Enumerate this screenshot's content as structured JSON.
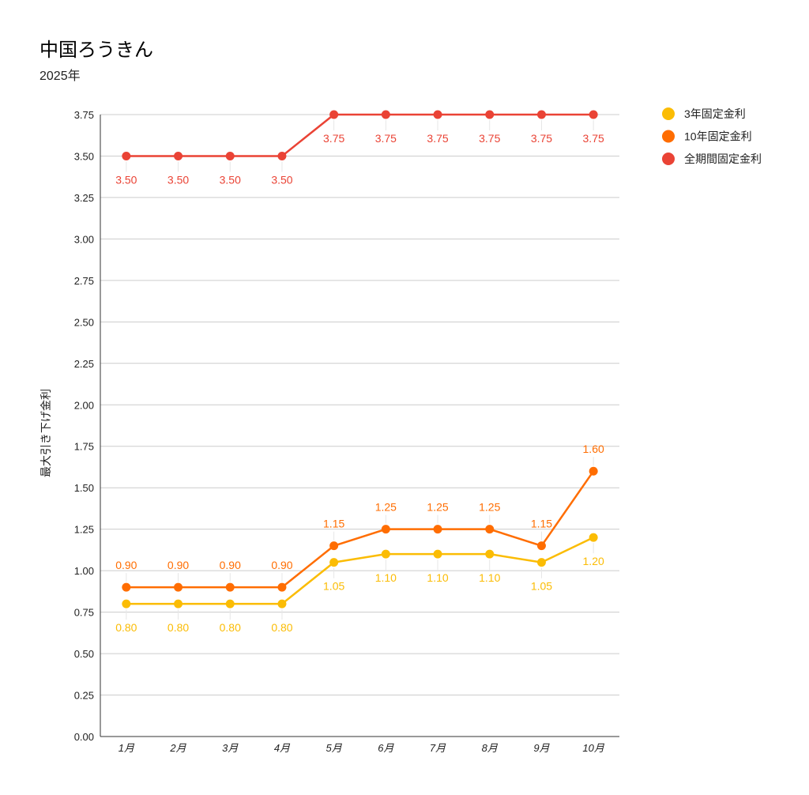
{
  "chart_data": {
    "type": "line",
    "title": "中国ろうきん",
    "subtitle": "2025年",
    "xlabel": "",
    "ylabel": "最大引き下げ金利",
    "categories": [
      "1月",
      "2月",
      "3月",
      "4月",
      "5月",
      "6月",
      "7月",
      "8月",
      "9月",
      "10月"
    ],
    "ylim": [
      0,
      3.75
    ],
    "yticks": [
      0,
      0.25,
      0.5,
      0.75,
      1.0,
      1.25,
      1.5,
      1.75,
      2.0,
      2.25,
      2.5,
      2.75,
      3.0,
      3.25,
      3.5,
      3.75
    ],
    "grid": true,
    "legend_placement": "right",
    "data_labels": true,
    "series": [
      {
        "name": "3年固定金利",
        "color": "#FBBC04",
        "values": [
          0.8,
          0.8,
          0.8,
          0.8,
          1.05,
          1.1,
          1.1,
          1.1,
          1.05,
          1.2
        ]
      },
      {
        "name": "10年固定金利",
        "color": "#FF6D01",
        "values": [
          0.9,
          0.9,
          0.9,
          0.9,
          1.15,
          1.25,
          1.25,
          1.25,
          1.15,
          1.6
        ]
      },
      {
        "name": "全期間固定金利",
        "color": "#EA4335",
        "values": [
          3.5,
          3.5,
          3.5,
          3.5,
          3.75,
          3.75,
          3.75,
          3.75,
          3.75,
          3.75
        ]
      }
    ]
  }
}
